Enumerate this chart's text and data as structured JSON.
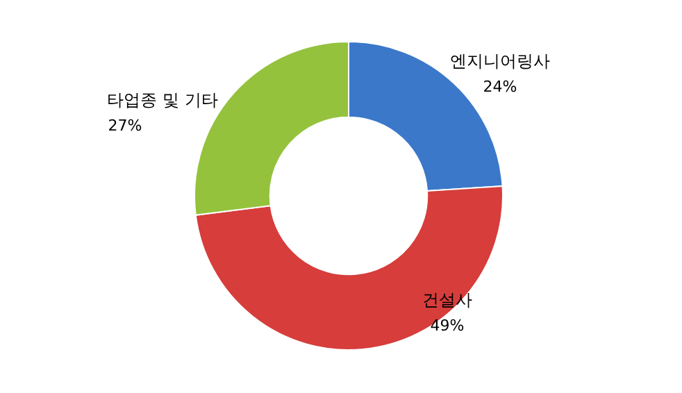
{
  "chart_data": {
    "type": "donut",
    "categories": [
      "엔지니어링사",
      "건설사",
      "타업종 및 기타"
    ],
    "values": [
      24,
      49,
      27
    ],
    "value_labels": [
      "24%",
      "49%",
      "27%"
    ],
    "colors": [
      "#3b78c9",
      "#d63d3b",
      "#94c23d"
    ],
    "legend": false
  }
}
